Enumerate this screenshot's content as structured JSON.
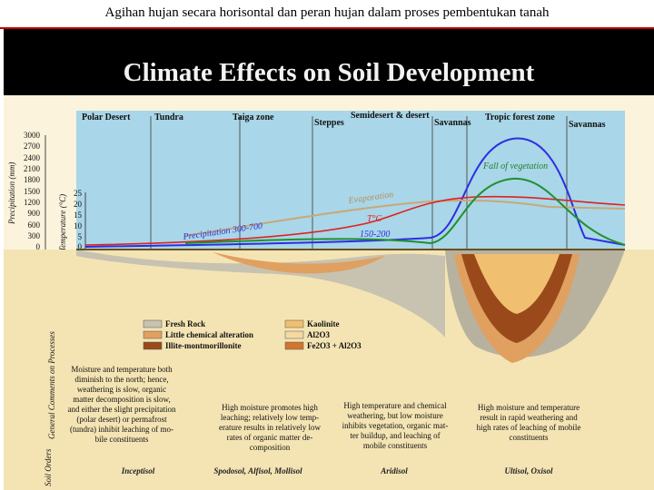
{
  "slide_header": "Agihan hujan secara horisontal dan peran hujan dalam proses pembentukan tanah",
  "figure": {
    "title": "Climate Effects on Soil Development",
    "zones": [
      "Polar Desert",
      "Tundra",
      "Taiga zone",
      "Steppes",
      "Semidesert & desert",
      "Savannas",
      "Tropic forest zone",
      "Savannas"
    ],
    "precip_axis_label": "Precipitation (mm)",
    "precip_ticks": [
      "3000",
      "2700",
      "2400",
      "2100",
      "1800",
      "1500",
      "1200",
      "900",
      "600",
      "300",
      "0"
    ],
    "temp_axis_label": "Temperature (°C)",
    "temp_ticks": [
      "25",
      "20",
      "15",
      "10",
      "5",
      "0"
    ],
    "curve_labels": {
      "fall_of_vegetation": "Fall of vegetation",
      "evaporation": "Evaporation",
      "precipitation": "Precipitation 300-700",
      "temperature": "T°C",
      "precip_range_2": "150-200"
    },
    "legend": {
      "fresh_rock": "Fresh Rock",
      "little_alteration": "Little chemical alteration",
      "illite": "Illite-montmorillonite",
      "kaolinite": "Kaolinite",
      "al2o3": "Al2O3",
      "fe2o3": "Fe2O3 + Al2O3"
    },
    "side_label_processes": "General Comments on Processes",
    "side_label_soils": "Soil Orders",
    "comments": {
      "c1": [
        "Moisture and temperature both",
        "diminish to the north; hence,",
        "weathering is slow, organic",
        "matter decomposition is slow,",
        "and either the slight precipitation",
        "(polar desert) or permafrost",
        "(tundra) inhibit leaching of mo-",
        "bile constituents"
      ],
      "c2": [
        "High moisture promotes high",
        "leaching; relatively low temp-",
        "erature results in relatively low",
        "rates of organic matter de-",
        "composition"
      ],
      "c3": [
        "High temperature and chemical",
        "weathering, but low moisture",
        "inhibits vegetation, organic mat-",
        "ter buildup, and leaching of",
        "mobile constituents"
      ],
      "c4": [
        "High moisture and temperature",
        "result in rapid weathering and",
        "high rates of leaching of mobile",
        "constituents"
      ]
    },
    "soil_orders": [
      "Inceptisol",
      "Spodosol, Alfisol, Mollisol",
      "Aridisol",
      "Ultisol, Oxisol"
    ],
    "colors": {
      "title_bg": "#000000",
      "title_text": "#f5f5f5",
      "sky": "#a8d4e6",
      "soil_surface": "#f2dfae",
      "fresh_rock": "#c8c2b0",
      "little_alteration": "#e0a060",
      "illite": "#9a4a1a",
      "kaolinite": "#f0c070",
      "precip_curve": "#2e2ee0",
      "evap_curve": "#c8a878",
      "temp_curve": "#e02020",
      "veg_curve": "#209030"
    }
  }
}
